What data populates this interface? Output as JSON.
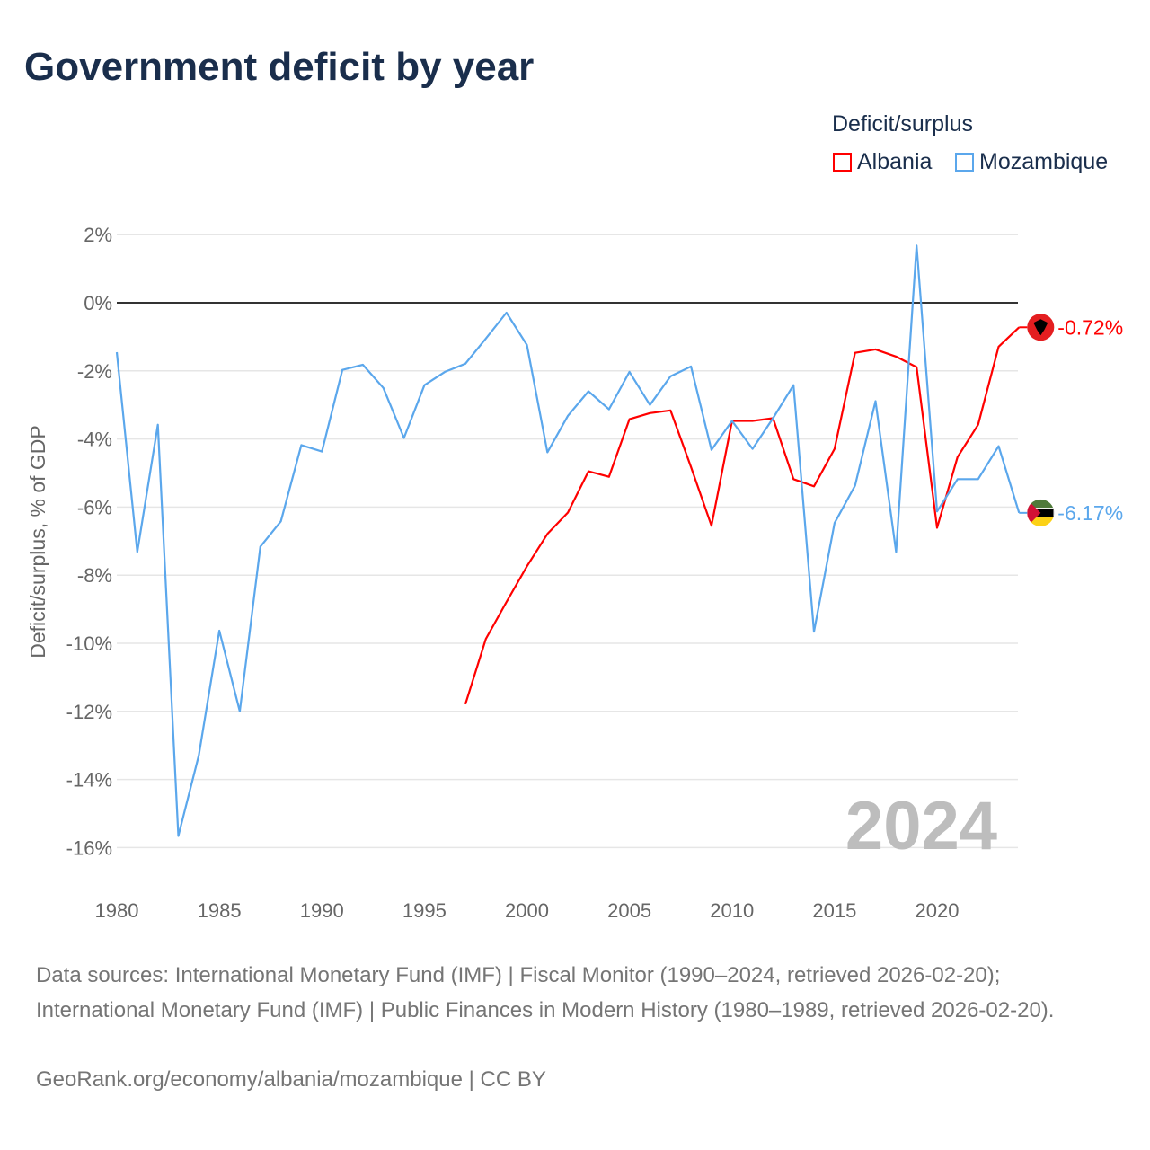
{
  "title": "Government deficit by year",
  "chart_data": {
    "type": "line",
    "title": "Government deficit by year",
    "xlabel": "",
    "ylabel": "Deficit/surplus, % of GDP",
    "ylim": [
      -16,
      2
    ],
    "xlim": [
      1980,
      2024
    ],
    "yticks": [
      2,
      0,
      -2,
      -4,
      -6,
      -8,
      -10,
      -12,
      -14,
      -16
    ],
    "ytick_labels": [
      "2%",
      "0%",
      "-2%",
      "-4%",
      "-6%",
      "-8%",
      "-10%",
      "-12%",
      "-14%",
      "-16%"
    ],
    "xticks": [
      1980,
      1985,
      1990,
      1995,
      2000,
      2005,
      2010,
      2015,
      2020
    ],
    "xtick_labels": [
      "1980",
      "1985",
      "1990",
      "1995",
      "2000",
      "2005",
      "2010",
      "2015",
      "2020"
    ],
    "grid": true,
    "legend_title": "Deficit/surplus",
    "legend_position": "top-right",
    "year_watermark": "2024",
    "series": [
      {
        "name": "Albania",
        "color": "#ff0000",
        "end_label": "-0.72%",
        "flag": "albania-flag",
        "x": [
          1997,
          1998,
          1999,
          2000,
          2001,
          2002,
          2003,
          2004,
          2005,
          2006,
          2007,
          2008,
          2009,
          2010,
          2011,
          2012,
          2013,
          2014,
          2015,
          2016,
          2017,
          2018,
          2019,
          2020,
          2021,
          2022,
          2023,
          2024
        ],
        "values": [
          -11.79,
          -9.87,
          -8.79,
          -7.74,
          -6.79,
          -6.16,
          -4.95,
          -5.11,
          -3.42,
          -3.24,
          -3.16,
          -4.82,
          -6.55,
          -3.47,
          -3.47,
          -3.39,
          -5.18,
          -5.39,
          -4.29,
          -1.47,
          -1.37,
          -1.58,
          -1.89,
          -6.61,
          -4.53,
          -3.58,
          -1.29,
          -0.72
        ]
      },
      {
        "name": "Mozambique",
        "color": "#5ba7ec",
        "end_label": "-6.17%",
        "flag": "mozambique-flag",
        "x": [
          1980,
          1981,
          1982,
          1983,
          1984,
          1985,
          1986,
          1987,
          1988,
          1989,
          1990,
          1991,
          1992,
          1993,
          1994,
          1995,
          1996,
          1997,
          1998,
          1999,
          2000,
          2001,
          2002,
          2003,
          2004,
          2005,
          2006,
          2007,
          2008,
          2009,
          2010,
          2011,
          2012,
          2013,
          2014,
          2015,
          2016,
          2017,
          2018,
          2019,
          2020,
          2021,
          2022,
          2023,
          2024
        ],
        "values": [
          -1.45,
          -7.32,
          -3.58,
          -15.66,
          -13.29,
          -9.63,
          -12.0,
          -7.16,
          -6.42,
          -4.18,
          -4.37,
          -1.97,
          -1.82,
          -2.5,
          -3.97,
          -2.42,
          -2.03,
          -1.79,
          -1.05,
          -0.29,
          -1.24,
          -4.39,
          -3.32,
          -2.6,
          -3.13,
          -2.03,
          -3.0,
          -2.16,
          -1.87,
          -4.32,
          -3.47,
          -4.29,
          -3.39,
          -2.42,
          -9.66,
          -6.47,
          -5.37,
          -2.89,
          -7.32,
          1.68,
          -6.13,
          -5.18,
          -5.18,
          -4.21,
          -6.17
        ]
      }
    ]
  },
  "footer": {
    "sources": "Data sources: International Monetary Fund (IMF) | Fiscal Monitor (1990–2024, retrieved 2026-02-20); International Monetary Fund (IMF) | Public Finances in Modern History (1980–1989, retrieved 2026-02-20).",
    "credit": "GeoRank.org/economy/albania/mozambique | CC BY"
  }
}
